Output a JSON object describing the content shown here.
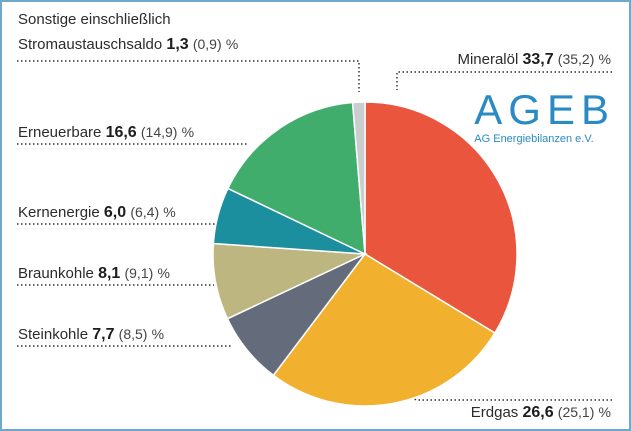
{
  "chart_data": {
    "type": "pie",
    "categories": [
      "Mineralöl",
      "Erdgas",
      "Steinkohle",
      "Braunkohle",
      "Kernenergie",
      "Erneuerbare",
      "Sonstige einschließlich Stromaustauschsaldo"
    ],
    "values": [
      33.7,
      26.6,
      7.7,
      8.1,
      6.0,
      16.6,
      1.3
    ],
    "value_labels": [
      "33,7",
      "26,6",
      "7,7",
      "8,1",
      "6,0",
      "16,6",
      "1,3"
    ],
    "previous_values": [
      35.2,
      25.1,
      8.5,
      9.1,
      6.4,
      14.9,
      0.9
    ],
    "previous_value_labels": [
      "(35,2)",
      "(25,1)",
      "(8,5)",
      "(9,1)",
      "(6,4)",
      "(14,9)",
      "(0,9)"
    ],
    "unit": "%",
    "colors": [
      "#e9553d",
      "#f1b12f",
      "#646b7a",
      "#bdb680",
      "#1b8f9e",
      "#41ad6c",
      "#c9cdcd"
    ],
    "logo_text": "AGEB",
    "logo_subtitle": "AG Energiebilanzen e.V."
  }
}
